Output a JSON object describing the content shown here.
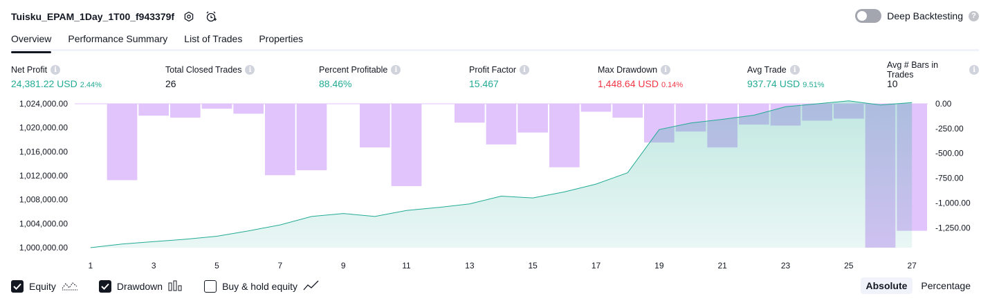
{
  "header": {
    "strategy_title": "Tuisku_EPAM_1Day_1T00_f943379f",
    "deep_backtesting_label": "Deep Backtesting",
    "deep_backtesting_enabled": false
  },
  "tabs": [
    {
      "label": "Overview",
      "active": true
    },
    {
      "label": "Performance Summary",
      "active": false
    },
    {
      "label": "List of Trades",
      "active": false
    },
    {
      "label": "Properties",
      "active": false
    }
  ],
  "metrics": {
    "net_profit": {
      "label": "Net Profit",
      "value": "24,381.22 USD",
      "pct": "2.44%"
    },
    "total_closed_trades": {
      "label": "Total Closed Trades",
      "value": "26"
    },
    "percent_profitable": {
      "label": "Percent Profitable",
      "value": "88.46%"
    },
    "profit_factor": {
      "label": "Profit Factor",
      "value": "15.467"
    },
    "max_drawdown": {
      "label": "Max Drawdown",
      "value": "1,448.64 USD",
      "pct": "0.14%"
    },
    "avg_trade": {
      "label": "Avg Trade",
      "value": "937.74 USD",
      "pct": "9.51%"
    },
    "avg_bars": {
      "label": "Avg # Bars in Trades",
      "value": "10"
    }
  },
  "chart_data": {
    "type": "area",
    "x": [
      1,
      2,
      3,
      4,
      5,
      6,
      7,
      8,
      9,
      10,
      11,
      12,
      13,
      14,
      15,
      16,
      17,
      18,
      19,
      20,
      21,
      22,
      23,
      24,
      25,
      26,
      27
    ],
    "x_ticks": [
      "1",
      "3",
      "5",
      "7",
      "9",
      "11",
      "13",
      "15",
      "17",
      "19",
      "21",
      "23",
      "25",
      "27"
    ],
    "series": [
      {
        "name": "Equity",
        "axis": "left",
        "color": "#22ab94",
        "values": [
          1000000,
          1000600,
          1001000,
          1001400,
          1001900,
          1002800,
          1003800,
          1005200,
          1005700,
          1005200,
          1006200,
          1006700,
          1007300,
          1008600,
          1008300,
          1009300,
          1010600,
          1012500,
          1019700,
          1020800,
          1021400,
          1022100,
          1023500,
          1024000,
          1024500,
          1023800,
          1024200
        ]
      },
      {
        "name": "Drawdown",
        "axis": "right",
        "color": "#e1c4fb",
        "values": [
          0,
          -770,
          -120,
          -140,
          -50,
          -100,
          -720,
          -670,
          0,
          -440,
          -830,
          0,
          -190,
          -410,
          -290,
          -640,
          -80,
          -140,
          -390,
          -280,
          -440,
          -210,
          -220,
          -170,
          -150,
          -1450,
          -1280
        ]
      }
    ],
    "y_left": {
      "ticks": [
        "1,024,000.00",
        "1,020,000.00",
        "1,016,000.00",
        "1,012,000.00",
        "1,008,000.00",
        "1,004,000.00",
        "1,000,000.00"
      ],
      "min": 1000000,
      "max": 1024000
    },
    "y_right": {
      "ticks": [
        "0.00",
        "-250.00",
        "-500.00",
        "-750.00",
        "-1,000.00",
        "-1,250.00"
      ],
      "min": -1450,
      "max": 0
    },
    "grid": false,
    "legend": "bottom-left"
  },
  "legend": {
    "equity": {
      "label": "Equity",
      "checked": true,
      "icon": "equity-line-icon"
    },
    "drawdown": {
      "label": "Drawdown",
      "checked": true,
      "icon": "drawdown-bars-icon"
    },
    "buy_hold": {
      "label": "Buy & hold equity",
      "checked": false,
      "icon": "buy-hold-line-icon"
    }
  },
  "mode": {
    "absolute_label": "Absolute",
    "percentage_label": "Percentage",
    "active": "absolute"
  }
}
